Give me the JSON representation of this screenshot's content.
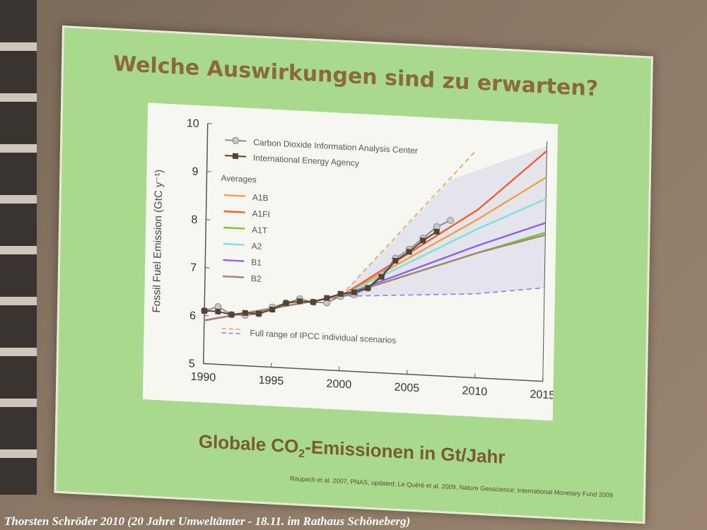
{
  "slide": {
    "title": "Welche Auswirkungen sind zu erwarten?",
    "subtitle_pre": "Globale CO",
    "subtitle_sub": "2",
    "subtitle_post": "-Emissionen in Gt/Jahr",
    "citation": "Raupach et al. 2007, PNAS, updated; Le Quéré et al. 2009, Nature Geoscience; International Monetary Fund 2009"
  },
  "footer": {
    "credit": "Thorsten Schröder 2010 (20 Jahre Umweltämter - 18.11. im Rathaus Schöneberg)"
  },
  "chart_data": {
    "type": "line",
    "ylabel": "Fossil Fuel Emission (GtC y⁻¹)",
    "xlim": [
      1990,
      2015
    ],
    "ylim": [
      5,
      10
    ],
    "x_ticks": [
      1990,
      1995,
      2000,
      2005,
      2010,
      2015
    ],
    "y_ticks": [
      5,
      6,
      7,
      8,
      9,
      10
    ],
    "legend_position": "top-left",
    "legend_heading": "Averages",
    "range_note": "Full range of IPCC individual scenarios",
    "colors": {
      "cdiac": "#8c8c8c",
      "iea": "#5a4030",
      "A1B": "#f0a040",
      "A1FI": "#f06030",
      "A1T": "#80c040",
      "A2": "#80e0e0",
      "B1": "#9060f0",
      "B2": "#a08870",
      "range_upper": "#f0a050",
      "range_lower": "#8080f0",
      "shade": "#e4e4ec"
    },
    "series": [
      {
        "name": "Carbon Dioxide Information Analysis Center",
        "marker": "circle",
        "x": [
          1990,
          1991,
          1992,
          1993,
          1994,
          1995,
          1996,
          1997,
          1998,
          1999,
          2000,
          2001,
          2002,
          2003,
          2004,
          2005,
          2006,
          2007,
          2008
        ],
        "y": [
          6.1,
          6.2,
          6.05,
          6.05,
          6.1,
          6.25,
          6.35,
          6.45,
          6.4,
          6.4,
          6.55,
          6.6,
          6.75,
          7.05,
          7.4,
          7.6,
          7.85,
          8.1,
          8.25
        ]
      },
      {
        "name": "International Energy Agency",
        "marker": "square",
        "x": [
          1990,
          1991,
          1992,
          1993,
          1994,
          1995,
          1996,
          1997,
          1998,
          1999,
          2000,
          2001,
          2002,
          2003,
          2004,
          2005,
          2006,
          2007
        ],
        "y": [
          6.1,
          6.1,
          6.05,
          6.1,
          6.1,
          6.2,
          6.35,
          6.4,
          6.4,
          6.5,
          6.6,
          6.65,
          6.75,
          7.0,
          7.35,
          7.55,
          7.8,
          8.0
        ]
      },
      {
        "name": "A1B",
        "x": [
          1990,
          2000,
          2010,
          2015
        ],
        "y": [
          5.9,
          6.55,
          8.3,
          9.25
        ]
      },
      {
        "name": "A1FI",
        "x": [
          1990,
          2000,
          2010,
          2015
        ],
        "y": [
          5.9,
          6.55,
          8.5,
          9.8
        ]
      },
      {
        "name": "A1T",
        "x": [
          1990,
          2000,
          2010,
          2015
        ],
        "y": [
          5.9,
          6.55,
          7.6,
          8.1
        ]
      },
      {
        "name": "A2",
        "x": [
          1990,
          2000,
          2010,
          2015
        ],
        "y": [
          5.9,
          6.55,
          8.1,
          8.8
        ]
      },
      {
        "name": "B1",
        "x": [
          1990,
          2000,
          2010,
          2015
        ],
        "y": [
          5.9,
          6.55,
          7.75,
          8.3
        ]
      },
      {
        "name": "B2",
        "x": [
          1990,
          2000,
          2010,
          2015
        ],
        "y": [
          5.9,
          6.55,
          7.6,
          8.05
        ]
      }
    ],
    "ipcc_range": {
      "upper": {
        "x": [
          2000,
          2010
        ],
        "y": [
          6.55,
          9.7
        ]
      },
      "lower": {
        "x": [
          2000,
          2005,
          2010,
          2015
        ],
        "y": [
          6.55,
          6.65,
          6.75,
          6.95
        ]
      }
    }
  }
}
